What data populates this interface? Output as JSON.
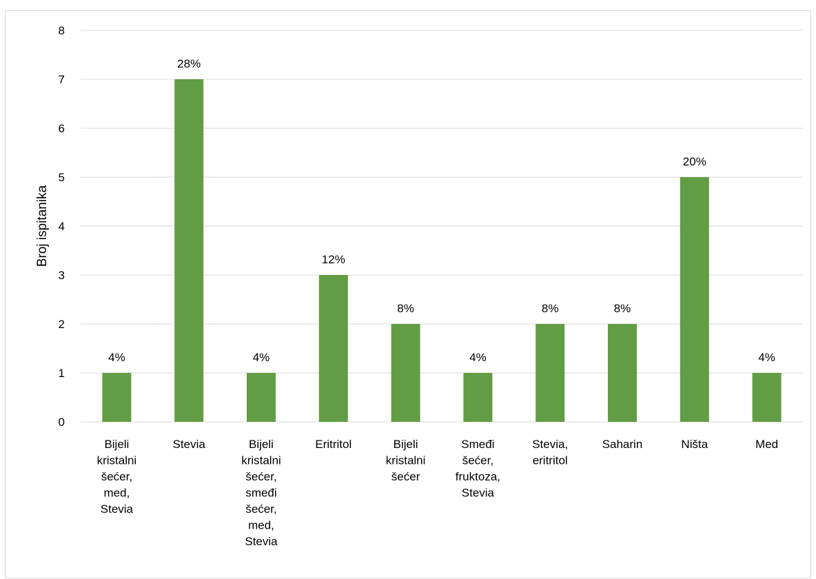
{
  "chart_data": {
    "type": "bar",
    "title": "",
    "xlabel": "",
    "ylabel": "Broj ispitanika",
    "ylim": [
      0,
      8
    ],
    "yticks": [
      "0",
      "1",
      "2",
      "3",
      "4",
      "5",
      "6",
      "7",
      "8"
    ],
    "grid": true,
    "legend": "none",
    "bar_color": "#629c44",
    "categories": [
      [
        "Bijeli",
        "kristalni",
        "šećer,",
        "med,",
        "Stevia"
      ],
      [
        "Stevia"
      ],
      [
        "Bijeli",
        "kristalni",
        "šećer,",
        "smeđi",
        "šećer,",
        "med,",
        "Stevia"
      ],
      [
        "Eritritol"
      ],
      [
        "Bijeli",
        "kristalni",
        "šećer"
      ],
      [
        "Smeđi",
        "šećer,",
        "fruktoza,",
        "Stevia"
      ],
      [
        "Stevia,",
        "eritritol"
      ],
      [
        "Saharin"
      ],
      [
        "Ništa"
      ],
      [
        "Med"
      ]
    ],
    "values": [
      1,
      7,
      1,
      3,
      2,
      1,
      2,
      2,
      5,
      1
    ],
    "data_labels": [
      "4%",
      "28%",
      "4%",
      "12%",
      "8%",
      "4%",
      "8%",
      "8%",
      "20%",
      "4%"
    ]
  }
}
